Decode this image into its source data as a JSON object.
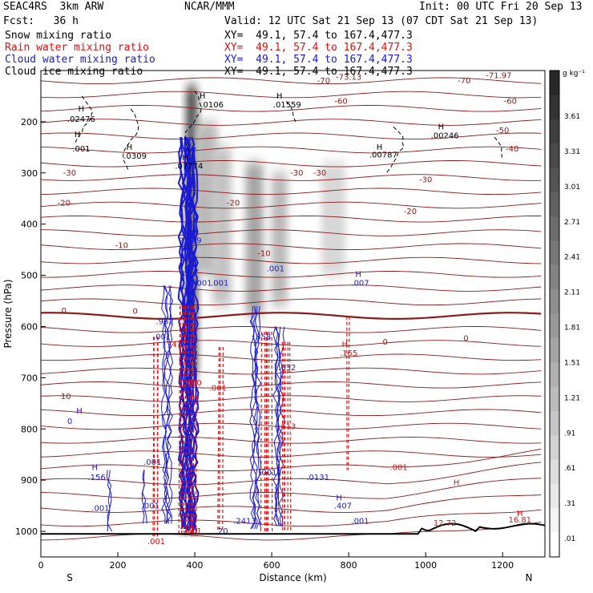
{
  "header": {
    "model": "SEAC4RS  3km ARW",
    "center": "NCAR/MMM",
    "init": "Init: 00 UTC Fri 20 Sep 13",
    "fcst": "Fcst:   36 h",
    "valid": "Valid: 12 UTC Sat 21 Sep 13 (07 CDT Sat 21 Sep 13)",
    "fields": [
      {
        "label": "Snow mixing ratio",
        "xy": "XY=  49.1, 57.4 to 167.4,477.3",
        "color": "#000000"
      },
      {
        "label": "Rain water mixing ratio",
        "xy": "XY=  49.1, 57.4 to 167.4,477.3",
        "color": "#e01010"
      },
      {
        "label": "Cloud water mixing ratio",
        "xy": "XY=  49.1, 57.4 to 167.4,477.3",
        "color": "#1a1ad0"
      },
      {
        "label": "Cloud ice mixing ratio",
        "xy": "XY=  49.1, 57.4 to 167.4,477.3",
        "color": "#000000"
      }
    ]
  },
  "chart_data": {
    "type": "heatmap",
    "xlabel": "Distance (km)",
    "ylabel": "Pressure (hPa)",
    "xlim": [
      0,
      1310
    ],
    "ylim": [
      1050,
      100
    ],
    "x_ticks": [
      0,
      200,
      400,
      600,
      800,
      1000,
      1200
    ],
    "y_ticks": [
      200,
      300,
      400,
      500,
      600,
      700,
      800,
      900,
      1000
    ],
    "x_end_labels": {
      "left": "S",
      "right": "N"
    },
    "colorbar": {
      "unit": "g kg⁻¹",
      "labels": [
        "3.61",
        "3.31",
        "3.01",
        "2.71",
        "2.41",
        "2.11",
        "1.81",
        "1.51",
        "1.21",
        ".91",
        ".61",
        ".31",
        ".01"
      ]
    },
    "snow_shading": [
      {
        "x": 392,
        "p_top": 130,
        "p_bot": 700,
        "w": 14,
        "intensity": 0.9
      },
      {
        "x": 430,
        "p_top": 200,
        "p_bot": 500,
        "w": 28,
        "intensity": 0.35
      },
      {
        "x": 470,
        "p_top": 250,
        "p_bot": 560,
        "w": 24,
        "intensity": 0.3
      },
      {
        "x": 555,
        "p_top": 280,
        "p_bot": 580,
        "w": 22,
        "intensity": 0.45
      },
      {
        "x": 620,
        "p_top": 300,
        "p_bot": 560,
        "w": 20,
        "intensity": 0.35
      },
      {
        "x": 760,
        "p_top": 280,
        "p_bot": 500,
        "w": 30,
        "intensity": 0.2
      }
    ],
    "temperature_labels": [
      {
        "x": 735,
        "p": 125,
        "text": "-70"
      },
      {
        "x": 1100,
        "p": 125,
        "text": "-70"
      },
      {
        "x": 800,
        "p": 118,
        "text": "-73.13"
      },
      {
        "x": 1190,
        "p": 115,
        "text": "-71.97"
      },
      {
        "x": 780,
        "p": 165,
        "text": "-60"
      },
      {
        "x": 1220,
        "p": 165,
        "text": "-60"
      },
      {
        "x": 1200,
        "p": 222,
        "text": "-50"
      },
      {
        "x": 1225,
        "p": 258,
        "text": "-40"
      },
      {
        "x": 75,
        "p": 305,
        "text": "-30"
      },
      {
        "x": 665,
        "p": 305,
        "text": "-30"
      },
      {
        "x": 725,
        "p": 305,
        "text": "-30"
      },
      {
        "x": 1000,
        "p": 318,
        "text": "-30"
      },
      {
        "x": 60,
        "p": 364,
        "text": "-20"
      },
      {
        "x": 500,
        "p": 364,
        "text": "-20"
      },
      {
        "x": 960,
        "p": 380,
        "text": "-20"
      },
      {
        "x": 210,
        "p": 447,
        "text": "-10"
      },
      {
        "x": 580,
        "p": 462,
        "text": "-10"
      },
      {
        "x": 60,
        "p": 574,
        "text": "0"
      },
      {
        "x": 245,
        "p": 575,
        "text": "0"
      },
      {
        "x": 895,
        "p": 635,
        "text": "0"
      },
      {
        "x": 1105,
        "p": 628,
        "text": "0"
      },
      {
        "x": 65,
        "p": 742,
        "text": "10"
      }
    ],
    "annotations": [
      {
        "x": 105,
        "p": 180,
        "text": "H",
        "color": "#000000"
      },
      {
        "x": 105,
        "p": 200,
        "text": ".02476",
        "color": "#000000"
      },
      {
        "x": 95,
        "p": 230,
        "text": "H",
        "color": "#000000"
      },
      {
        "x": 105,
        "p": 258,
        "text": ".001",
        "color": "#000000"
      },
      {
        "x": 230,
        "p": 255,
        "text": "H",
        "color": "#000000"
      },
      {
        "x": 245,
        "p": 272,
        "text": ".0309",
        "color": "#000000"
      },
      {
        "x": 420,
        "p": 155,
        "text": "H",
        "color": "#000000"
      },
      {
        "x": 445,
        "p": 172,
        "text": ".0106",
        "color": "#000000"
      },
      {
        "x": 375,
        "p": 275,
        "text": "H",
        "color": "#000000"
      },
      {
        "x": 385,
        "p": 292,
        "text": ".07774",
        "color": "#000000"
      },
      {
        "x": 620,
        "p": 155,
        "text": "H",
        "color": "#000000"
      },
      {
        "x": 640,
        "p": 172,
        "text": ".01559",
        "color": "#000000"
      },
      {
        "x": 880,
        "p": 255,
        "text": "H",
        "color": "#000000"
      },
      {
        "x": 890,
        "p": 270,
        "text": ".00787",
        "color": "#000000"
      },
      {
        "x": 1040,
        "p": 215,
        "text": "H",
        "color": "#000000"
      },
      {
        "x": 1050,
        "p": 232,
        "text": ".00246",
        "color": "#000000"
      },
      {
        "x": 400,
        "p": 420,
        "text": "H",
        "color": "#1a1ad0"
      },
      {
        "x": 388,
        "p": 437,
        "text": "2.219",
        "color": "#1a1ad0"
      },
      {
        "x": 1080,
        "p": 910,
        "text": "H",
        "color": "#e01010"
      },
      {
        "x": 1050,
        "p": 989,
        "text": "12.72",
        "color": "#e01010"
      },
      {
        "x": 1245,
        "p": 970,
        "text": "H",
        "color": "#e01010"
      },
      {
        "x": 1245,
        "p": 983,
        "text": "16.81",
        "color": "#e01010"
      },
      {
        "x": 790,
        "p": 640,
        "text": "H",
        "color": "#e01010"
      },
      {
        "x": 800,
        "p": 657,
        "text": ".165",
        "color": "#e01010"
      },
      {
        "x": 825,
        "p": 503,
        "text": "H",
        "color": "#1a1ad0"
      },
      {
        "x": 830,
        "p": 520,
        "text": ".007",
        "color": "#1a1ad0"
      },
      {
        "x": 610,
        "p": 492,
        "text": ".001",
        "color": "#1a1ad0"
      },
      {
        "x": 465,
        "p": 520,
        "text": ".001",
        "color": "#1a1ad0"
      },
      {
        "x": 415,
        "p": 520,
        "text": "3.001",
        "color": "#1a1ad0"
      },
      {
        "x": 100,
        "p": 770,
        "text": "H",
        "color": "#1a1ad0"
      },
      {
        "x": 75,
        "p": 790,
        "text": "0",
        "color": "#1a1ad0"
      },
      {
        "x": 140,
        "p": 880,
        "text": "H",
        "color": "#1a1ad0"
      },
      {
        "x": 145,
        "p": 900,
        "text": ".156",
        "color": "#1a1ad0"
      },
      {
        "x": 155,
        "p": 960,
        "text": ".001",
        "color": "#1a1ad0"
      },
      {
        "x": 285,
        "p": 955,
        "text": ".001",
        "color": "#1a1ad0"
      },
      {
        "x": 322,
        "p": 595,
        "text": ".962",
        "color": "#1a1ad0"
      },
      {
        "x": 315,
        "p": 625,
        "text": ".001",
        "color": "#1a1ad0"
      },
      {
        "x": 290,
        "p": 870,
        "text": ".001",
        "color": "#1a1ad0"
      },
      {
        "x": 575,
        "p": 625,
        "text": ".858",
        "color": "#1a1ad0"
      },
      {
        "x": 640,
        "p": 685,
        "text": ".632",
        "color": "#1a1ad0"
      },
      {
        "x": 775,
        "p": 940,
        "text": "H",
        "color": "#1a1ad0"
      },
      {
        "x": 785,
        "p": 955,
        "text": ".407",
        "color": "#1a1ad0"
      },
      {
        "x": 830,
        "p": 985,
        "text": ".001",
        "color": "#1a1ad0"
      },
      {
        "x": 720,
        "p": 900,
        "text": ".0131",
        "color": "#1a1ad0"
      },
      {
        "x": 590,
        "p": 890,
        "text": ".001",
        "color": "#1a1ad0"
      },
      {
        "x": 530,
        "p": 985,
        "text": ".2413",
        "color": "#1a1ad0"
      },
      {
        "x": 470,
        "p": 1005,
        "text": ".20",
        "color": "#1a1ad0"
      },
      {
        "x": 640,
        "p": 800,
        "text": ".613",
        "color": "#e01010"
      },
      {
        "x": 930,
        "p": 880,
        "text": ".001",
        "color": "#e01010"
      },
      {
        "x": 300,
        "p": 1025,
        "text": ".001",
        "color": "#e01010"
      },
      {
        "x": 395,
        "p": 715,
        "text": ".400",
        "color": "#e01010"
      },
      {
        "x": 395,
        "p": 1005,
        "text": ".001",
        "color": "#e01010"
      },
      {
        "x": 395,
        "p": 745,
        "text": ".09",
        "color": "#e01010"
      },
      {
        "x": 460,
        "p": 725,
        "text": ".001",
        "color": "#e01010"
      },
      {
        "x": 350,
        "p": 640,
        "text": ".41",
        "color": "#e01010"
      }
    ]
  }
}
